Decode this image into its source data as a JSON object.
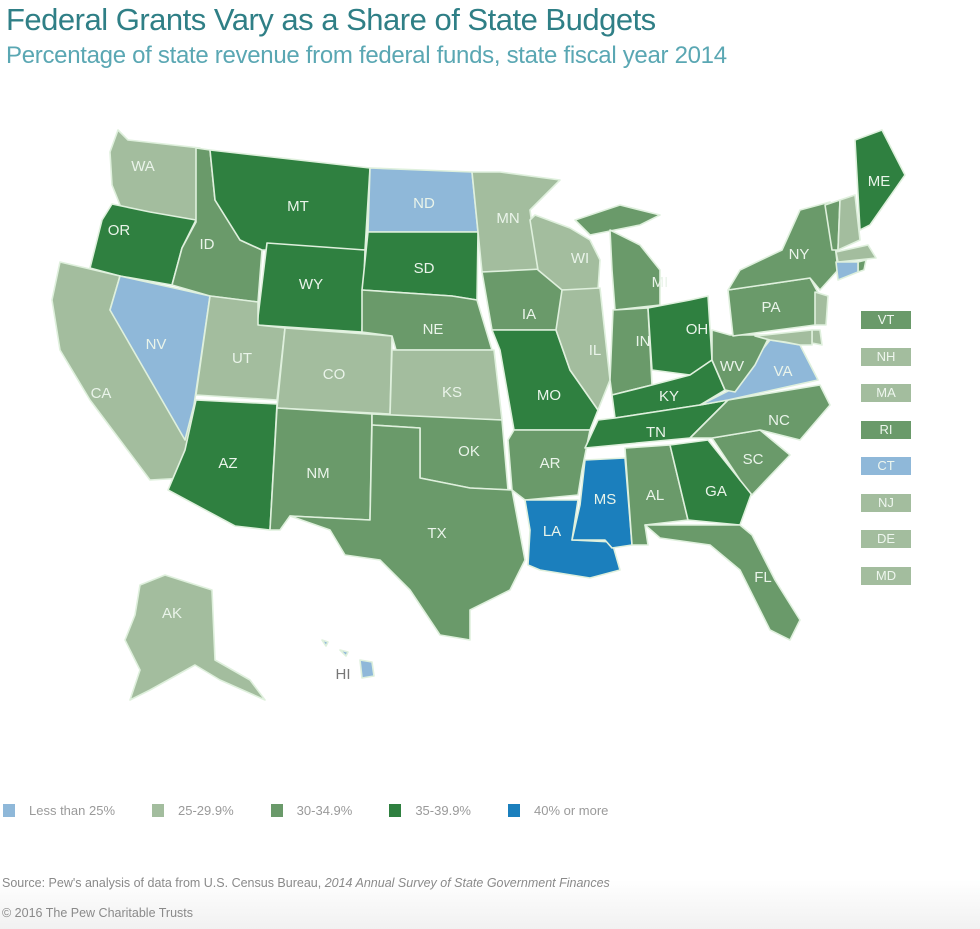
{
  "header": {
    "title": "Federal Grants Vary as a Share of State Budgets",
    "subtitle": "Percentage of state revenue from federal funds, state fiscal year 2014"
  },
  "colors": {
    "lt25": "#8fb8d9",
    "b25_29": "#a3bd9e",
    "b30_34": "#6a9a6a",
    "b35_39": "#2f8040",
    "ge40": "#1b7fbd"
  },
  "legend": [
    {
      "key": "lt25",
      "label": "Less than 25%"
    },
    {
      "key": "b25_29",
      "label": "25-29.9%"
    },
    {
      "key": "b30_34",
      "label": "30-34.9%"
    },
    {
      "key": "b35_39",
      "label": "35-39.9%"
    },
    {
      "key": "ge40",
      "label": "40% or more"
    }
  ],
  "states": {
    "WA": "b25_29",
    "OR": "b35_39",
    "CA": "b25_29",
    "NV": "lt25",
    "ID": "b30_34",
    "MT": "b35_39",
    "WY": "b35_39",
    "UT": "b25_29",
    "CO": "b25_29",
    "AZ": "b35_39",
    "NM": "b30_34",
    "ND": "lt25",
    "SD": "b35_39",
    "NE": "b30_34",
    "KS": "b25_29",
    "OK": "b30_34",
    "TX": "b30_34",
    "MN": "b25_29",
    "IA": "b30_34",
    "MO": "b35_39",
    "AR": "b30_34",
    "LA": "ge40",
    "WI": "b25_29",
    "IL": "b25_29",
    "MI": "b30_34",
    "IN": "b30_34",
    "OH": "b35_39",
    "KY": "b35_39",
    "TN": "b35_39",
    "MS": "ge40",
    "AL": "b30_34",
    "GA": "b35_39",
    "FL": "b30_34",
    "SC": "b30_34",
    "NC": "b30_34",
    "VA": "lt25",
    "WV": "b30_34",
    "PA": "b30_34",
    "NY": "b30_34",
    "ME": "b35_39",
    "VT": "b30_34",
    "NH": "b25_29",
    "MA": "b25_29",
    "RI": "b30_34",
    "CT": "lt25",
    "NJ": "b25_29",
    "DE": "b25_29",
    "MD": "b25_29",
    "AK": "b25_29",
    "HI": "lt25"
  },
  "northeast_boxes": [
    "VT",
    "NH",
    "MA",
    "RI",
    "CT",
    "NJ",
    "DE",
    "MD"
  ],
  "labels": {
    "WA": "WA",
    "OR": "OR",
    "CA": "CA",
    "NV": "NV",
    "ID": "ID",
    "MT": "MT",
    "WY": "WY",
    "UT": "UT",
    "CO": "CO",
    "AZ": "AZ",
    "NM": "NM",
    "ND": "ND",
    "SD": "SD",
    "NE": "NE",
    "KS": "KS",
    "OK": "OK",
    "TX": "TX",
    "MN": "MN",
    "IA": "IA",
    "MO": "MO",
    "AR": "AR",
    "LA": "LA",
    "WI": "WI",
    "IL": "IL",
    "MI": "MI",
    "IN": "IN",
    "OH": "OH",
    "KY": "KY",
    "TN": "TN",
    "MS": "MS",
    "AL": "AL",
    "GA": "GA",
    "FL": "FL",
    "SC": "SC",
    "NC": "NC",
    "VA": "VA",
    "WV": "WV",
    "PA": "PA",
    "NY": "NY",
    "ME": "ME",
    "AK": "AK",
    "HI": "HI"
  },
  "footer": {
    "source_prefix": "Source: Pew's analysis of data from U.S. Census Bureau, ",
    "source_italic": "2014 Annual Survey of State Government Finances",
    "copyright": "© 2016 The Pew Charitable Trusts"
  }
}
